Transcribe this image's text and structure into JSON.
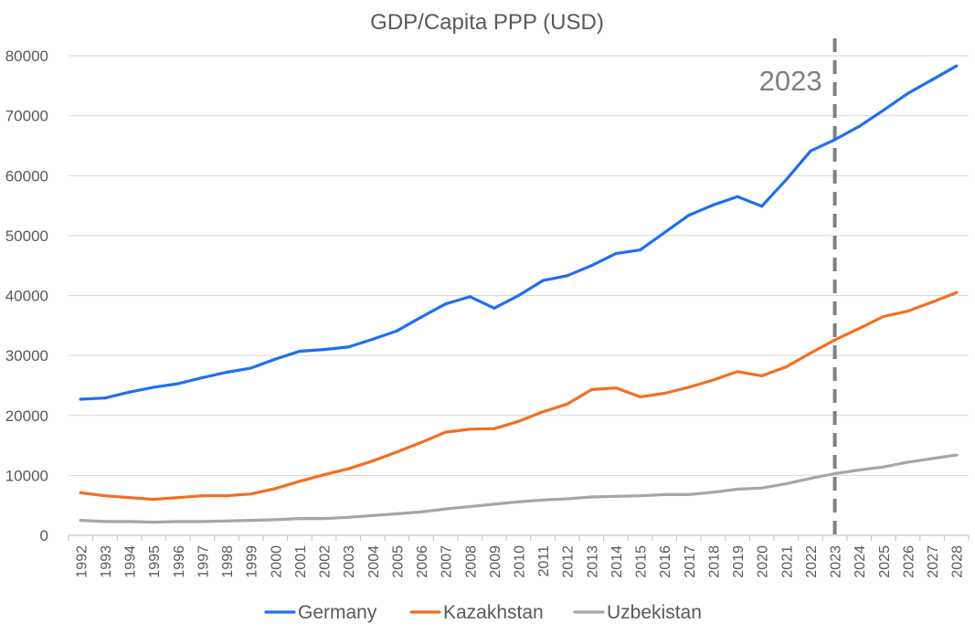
{
  "chart_data": {
    "type": "line",
    "title": "GDP/Capita PPP (USD)",
    "xlabel": "",
    "ylabel": "",
    "ylim": [
      0,
      80000
    ],
    "yticks": [
      0,
      10000,
      20000,
      30000,
      40000,
      50000,
      60000,
      70000,
      80000
    ],
    "grid": true,
    "legend_position": "bottom",
    "x": [
      "1992",
      "1993",
      "1994",
      "1995",
      "1996",
      "1997",
      "1998",
      "1999",
      "2000",
      "2001",
      "2002",
      "2003",
      "2004",
      "2005",
      "2006",
      "2007",
      "2008",
      "2009",
      "2010",
      "2011",
      "2012",
      "2013",
      "2014",
      "2015",
      "2016",
      "2017",
      "2018",
      "2019",
      "2020",
      "2021",
      "2022",
      "2023",
      "2024",
      "2025",
      "2026",
      "2027",
      "2028"
    ],
    "series": [
      {
        "name": "Germany",
        "color": "#1f6fef",
        "values": [
          22700,
          22900,
          23900,
          24700,
          25300,
          26300,
          27200,
          27900,
          29400,
          30700,
          31000,
          31400,
          32700,
          34100,
          36400,
          38600,
          39800,
          37900,
          40000,
          42500,
          43300,
          45000,
          47000,
          47600,
          50500,
          53400,
          55100,
          56500,
          54900,
          59300,
          64100,
          66000,
          68200,
          70900,
          73700,
          76000,
          78300
        ]
      },
      {
        "name": "Kazakhstan",
        "color": "#f26f21",
        "values": [
          7100,
          6600,
          6300,
          6000,
          6300,
          6600,
          6600,
          6900,
          7800,
          9000,
          10100,
          11100,
          12400,
          13900,
          15500,
          17200,
          17700,
          17800,
          19000,
          20600,
          21900,
          24300,
          24600,
          23100,
          23700,
          24700,
          25900,
          27300,
          26600,
          28100,
          30400,
          32600,
          34500,
          36500,
          37400,
          38900,
          40500
        ]
      },
      {
        "name": "Uzbekistan",
        "color": "#a6a6a6",
        "values": [
          2500,
          2300,
          2300,
          2200,
          2300,
          2300,
          2400,
          2500,
          2600,
          2800,
          2800,
          3000,
          3300,
          3600,
          3900,
          4400,
          4800,
          5200,
          5600,
          5900,
          6100,
          6400,
          6500,
          6600,
          6800,
          6800,
          7200,
          7700,
          7900,
          8600,
          9500,
          10300,
          10900,
          11400,
          12200,
          12800,
          13400
        ]
      }
    ],
    "annotations": [
      {
        "label": "2023",
        "x": "2023",
        "style": "dashed-vertical-line",
        "color": "#7f7f7f"
      }
    ]
  }
}
